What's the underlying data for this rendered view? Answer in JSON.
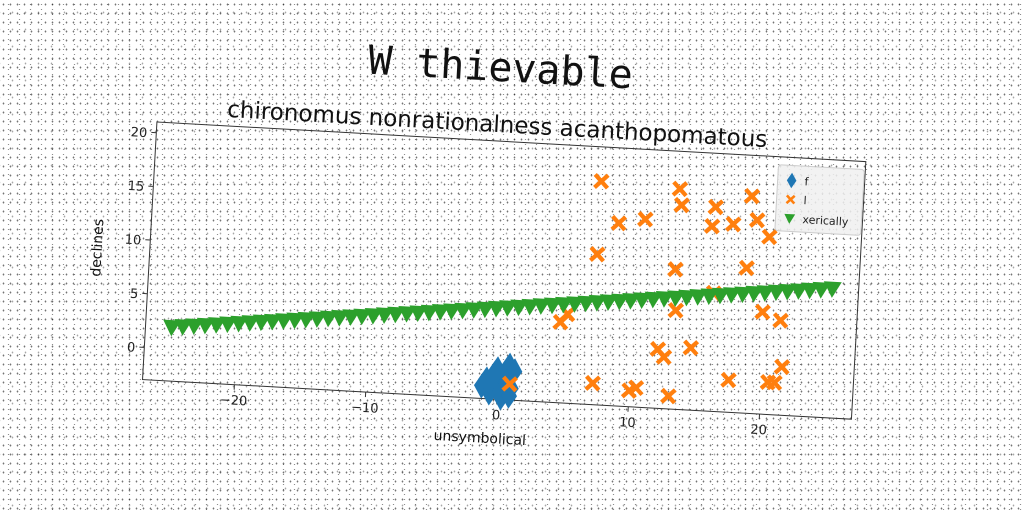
{
  "chart_data": {
    "type": "scatter",
    "title": "W thievable",
    "subtitle": "chironomus nonrationalness acanthopomatous",
    "xlabel": "unsymbolical",
    "ylabel": "declines",
    "xlim": [
      -27,
      27
    ],
    "ylim": [
      -3,
      21
    ],
    "x_ticks": [
      -20,
      -10,
      0,
      10,
      20
    ],
    "y_ticks": [
      0,
      5,
      10,
      15,
      20
    ],
    "grid": false,
    "legend_position": "top-right",
    "series": [
      {
        "name": "f",
        "marker": "diamond",
        "color": "#1f77b4",
        "points": [
          [
            -1.2,
            -1.8
          ],
          [
            -0.9,
            -1.2
          ],
          [
            -0.6,
            -2.4
          ],
          [
            -0.3,
            -0.6
          ],
          [
            0.0,
            -1.5
          ],
          [
            0.3,
            -2.8
          ],
          [
            0.5,
            -0.9
          ],
          [
            0.8,
            0.2
          ],
          [
            1.0,
            -1.9
          ],
          [
            1.2,
            -0.3
          ],
          [
            0.2,
            -2.2
          ],
          [
            -0.4,
            -1.0
          ],
          [
            0.6,
            -1.4
          ],
          [
            0.9,
            -2.6
          ],
          [
            -0.1,
            -0.2
          ]
        ]
      },
      {
        "name": "l",
        "marker": "x",
        "color": "#ff7f0e",
        "points": [
          [
            7.0,
            17.8
          ],
          [
            8.5,
            14.0
          ],
          [
            10.5,
            14.5
          ],
          [
            13.0,
            17.5
          ],
          [
            13.2,
            16.0
          ],
          [
            15.8,
            16.0
          ],
          [
            15.6,
            14.2
          ],
          [
            17.2,
            14.5
          ],
          [
            18.5,
            17.2
          ],
          [
            19.0,
            15.0
          ],
          [
            20.0,
            13.5
          ],
          [
            18.4,
            10.5
          ],
          [
            13.0,
            10.0
          ],
          [
            7.0,
            11.0
          ],
          [
            16.0,
            8.0
          ],
          [
            13.2,
            6.2
          ],
          [
            19.8,
            6.5
          ],
          [
            21.2,
            5.8
          ],
          [
            4.5,
            4.5
          ],
          [
            5.0,
            5.3
          ],
          [
            12.0,
            2.5
          ],
          [
            12.5,
            1.8
          ],
          [
            14.5,
            2.8
          ],
          [
            21.5,
            1.5
          ],
          [
            17.5,
            0.0
          ],
          [
            20.5,
            0.0
          ],
          [
            21.0,
            0.0
          ],
          [
            7.2,
            -1.0
          ],
          [
            10.0,
            -1.5
          ],
          [
            10.5,
            -1.2
          ],
          [
            13.0,
            -1.8
          ],
          [
            0.9,
            -1.5
          ]
        ]
      },
      {
        "name": "xerically",
        "marker": "triangle_down",
        "color": "#2ca02c",
        "x_start": -25,
        "x_end": 25,
        "y_start": 2.0,
        "y_end": 9.0,
        "count": 60
      }
    ]
  }
}
